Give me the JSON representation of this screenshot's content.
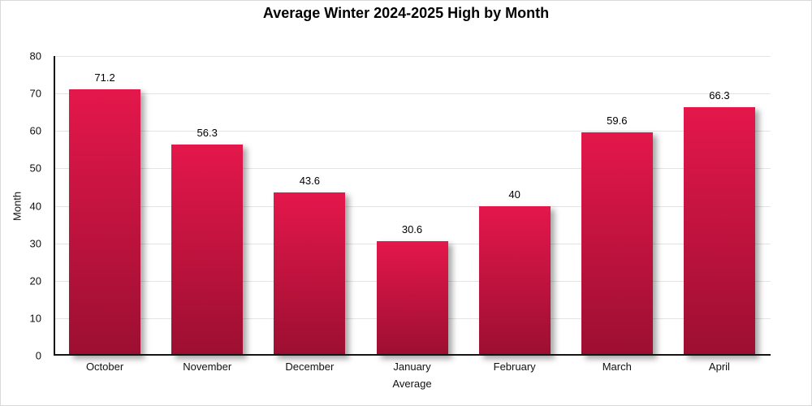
{
  "chart_data": {
    "type": "bar",
    "title": "Average Winter 2024-2025 High by Month",
    "categories": [
      "October",
      "November",
      "December",
      "January",
      "February",
      "March",
      "April"
    ],
    "values": [
      71.2,
      56.3,
      43.6,
      30.6,
      40,
      59.6,
      66.3
    ],
    "value_labels": [
      "71.2",
      "56.3",
      "43.6",
      "30.6",
      "40",
      "59.6",
      "66.3"
    ],
    "xlabel": "Average",
    "ylabel": "Month",
    "ylim": [
      0,
      80
    ],
    "yticks": [
      0,
      10,
      20,
      30,
      40,
      50,
      60,
      70,
      80
    ],
    "grid": true,
    "legend_position": "none",
    "colors": {
      "bar_gradient_top": "#e4174b",
      "bar_gradient_bottom": "#9c0f31",
      "axis_line": "#151515",
      "gridline": "#e4e4e4",
      "text": "#111111",
      "background": "#ffffff",
      "border": "#d9d9d9"
    }
  }
}
